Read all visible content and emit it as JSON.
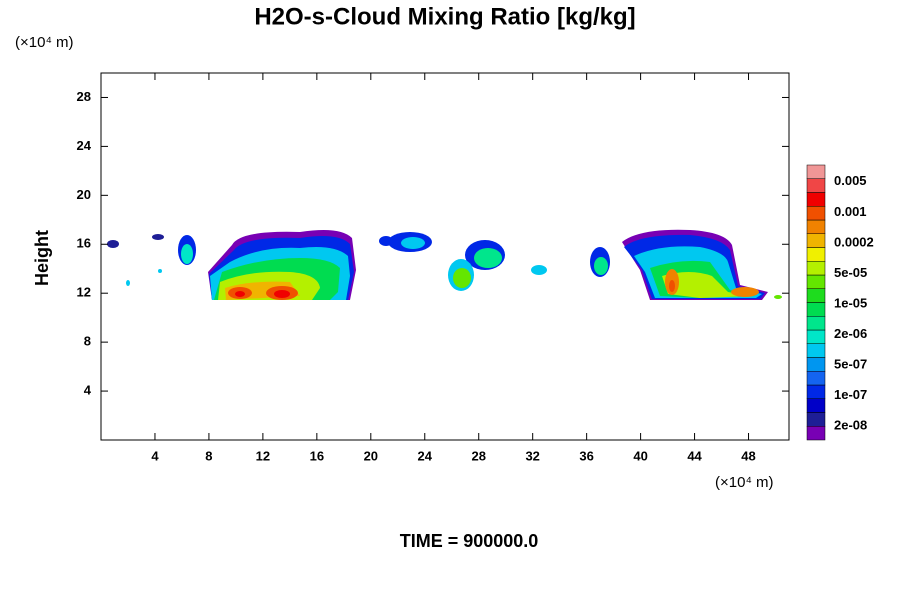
{
  "chart_data": {
    "type": "contour",
    "title": "H2O-s-Cloud Mixing Ratio [kg/kg]",
    "ylabel": "Height",
    "y_unit": "(×10⁴ m)",
    "x_unit": "(×10⁴ m)",
    "footer": "TIME = 900000.0",
    "xlim": [
      0,
      51
    ],
    "xticks": [
      4,
      8,
      12,
      16,
      20,
      24,
      28,
      32,
      36,
      40,
      44,
      48
    ],
    "ylim": [
      0,
      30
    ],
    "yticks": [
      4,
      8,
      12,
      16,
      20,
      24,
      28
    ],
    "colorbar": {
      "colors": [
        "#7800b4",
        "#1e1e96",
        "#0000c8",
        "#0028e6",
        "#1464f0",
        "#0096f0",
        "#00c8f0",
        "#00e6c8",
        "#00e68c",
        "#00dc50",
        "#1edc1e",
        "#64e600",
        "#b4f000",
        "#f0f000",
        "#f0b400",
        "#f08200",
        "#f05000",
        "#f00000",
        "#f04646",
        "#f09696"
      ],
      "levels": [
        {
          "value": 2e-08,
          "label": "2e-08"
        },
        {
          "value": 1e-07,
          "label": "1e-07"
        },
        {
          "value": 5e-07,
          "label": "5e-07"
        },
        {
          "value": 2e-06,
          "label": "2e-06"
        },
        {
          "value": 1e-05,
          "label": "1e-05"
        },
        {
          "value": 5e-05,
          "label": "5e-05"
        },
        {
          "value": 0.0002,
          "label": "0.0002"
        },
        {
          "value": 0.001,
          "label": "0.001"
        },
        {
          "value": 0.005,
          "label": "0.005"
        }
      ]
    }
  }
}
